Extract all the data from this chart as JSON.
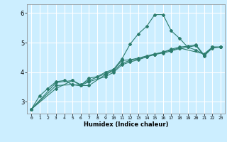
{
  "title": "",
  "xlabel": "Humidex (Indice chaleur)",
  "bg_color": "#cceeff",
  "grid_color": "#ffffff",
  "line_color": "#2d7d6e",
  "xlim": [
    -0.5,
    23.5
  ],
  "ylim": [
    2.6,
    6.3
  ],
  "xticks": [
    0,
    1,
    2,
    3,
    4,
    5,
    6,
    7,
    8,
    9,
    10,
    11,
    12,
    13,
    14,
    15,
    16,
    17,
    18,
    19,
    20,
    21,
    22,
    23
  ],
  "yticks": [
    3,
    4,
    5,
    6
  ],
  "series1_x": [
    0,
    1,
    2,
    3,
    4,
    5,
    6,
    7,
    8,
    9,
    10,
    11,
    12,
    13,
    14,
    15,
    16,
    17,
    18,
    19,
    20,
    21,
    22,
    23
  ],
  "series1_y": [
    2.75,
    3.2,
    3.45,
    3.68,
    3.72,
    3.58,
    3.55,
    3.8,
    3.85,
    4.0,
    4.1,
    4.45,
    4.95,
    5.3,
    5.55,
    5.95,
    5.95,
    5.4,
    5.15,
    4.85,
    4.75,
    4.6,
    4.85,
    4.85
  ],
  "series2_x": [
    0,
    3,
    5,
    6,
    7,
    9,
    10,
    11,
    12,
    13,
    14,
    15,
    16,
    17,
    18,
    19,
    20,
    21,
    22,
    23
  ],
  "series2_y": [
    2.75,
    3.45,
    3.72,
    3.58,
    3.72,
    3.95,
    4.08,
    4.4,
    4.42,
    4.48,
    4.55,
    4.62,
    4.68,
    4.78,
    4.85,
    4.88,
    4.93,
    4.58,
    4.85,
    4.85
  ],
  "series3_x": [
    0,
    3,
    5,
    6,
    7,
    9,
    10,
    11,
    12,
    13,
    14,
    15,
    16,
    17,
    18,
    19,
    20,
    21,
    22,
    23
  ],
  "series3_y": [
    2.75,
    3.55,
    3.58,
    3.55,
    3.68,
    3.85,
    4.0,
    4.25,
    4.35,
    4.42,
    4.52,
    4.6,
    4.65,
    4.72,
    4.8,
    4.85,
    4.9,
    4.55,
    4.82,
    4.85
  ],
  "series4_x": [
    0,
    3,
    5,
    6,
    7,
    9,
    10,
    11,
    12,
    13,
    14,
    15,
    16,
    17,
    18,
    21,
    22,
    23
  ],
  "series4_y": [
    2.75,
    3.65,
    3.72,
    3.55,
    3.55,
    3.92,
    4.05,
    4.3,
    4.4,
    4.45,
    4.52,
    4.6,
    4.68,
    4.75,
    4.82,
    4.62,
    4.85,
    4.85
  ]
}
